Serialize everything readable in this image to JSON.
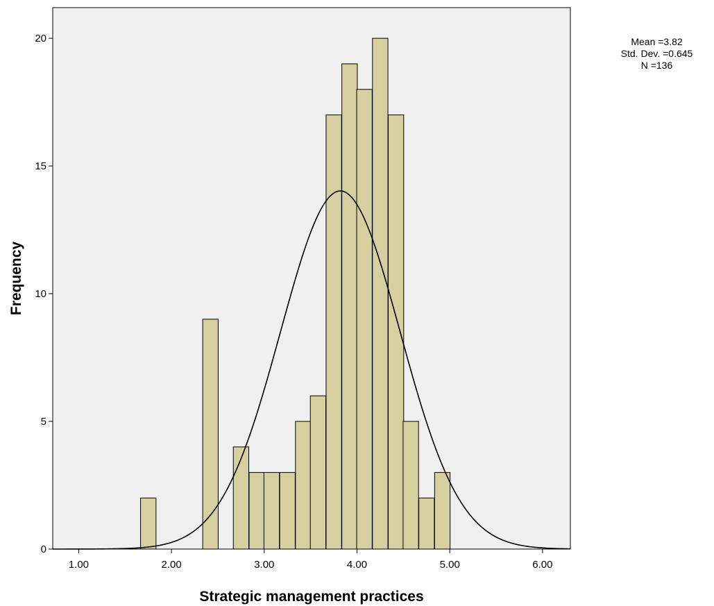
{
  "chart_data": {
    "type": "bar",
    "xlabel": "Strategic management practices",
    "ylabel": "Frequency",
    "xlim": [
      0.72,
      6.3
    ],
    "ylim": [
      0,
      21.2
    ],
    "x_ticks": [
      "1.00",
      "2.00",
      "3.00",
      "4.00",
      "5.00",
      "6.00"
    ],
    "x_tick_values": [
      1,
      2,
      3,
      4,
      5,
      6
    ],
    "y_ticks": [
      "0",
      "5",
      "10",
      "15",
      "20"
    ],
    "y_tick_values": [
      0,
      5,
      10,
      15,
      20
    ],
    "bin_width": 0.1667,
    "bars": [
      {
        "x": 1.75,
        "value": 2
      },
      {
        "x": 2.42,
        "value": 9
      },
      {
        "x": 2.75,
        "value": 4
      },
      {
        "x": 2.92,
        "value": 3
      },
      {
        "x": 3.08,
        "value": 3
      },
      {
        "x": 3.25,
        "value": 3
      },
      {
        "x": 3.42,
        "value": 5
      },
      {
        "x": 3.58,
        "value": 6
      },
      {
        "x": 3.75,
        "value": 17
      },
      {
        "x": 3.92,
        "value": 19
      },
      {
        "x": 4.08,
        "value": 18
      },
      {
        "x": 4.25,
        "value": 20
      },
      {
        "x": 4.42,
        "value": 17
      },
      {
        "x": 4.58,
        "value": 5
      },
      {
        "x": 4.75,
        "value": 2
      },
      {
        "x": 4.92,
        "value": 3
      }
    ],
    "normal_curve": {
      "mean": 3.82,
      "std_dev": 0.645,
      "n": 136
    },
    "grid": false,
    "colors": {
      "bar_fill": "#d6d0a0",
      "plot_background": "#f0f0f0",
      "curve": "#000000"
    },
    "stats_lines": [
      "Mean =3.82",
      "Std. Dev. =0.645",
      "N =136"
    ]
  }
}
